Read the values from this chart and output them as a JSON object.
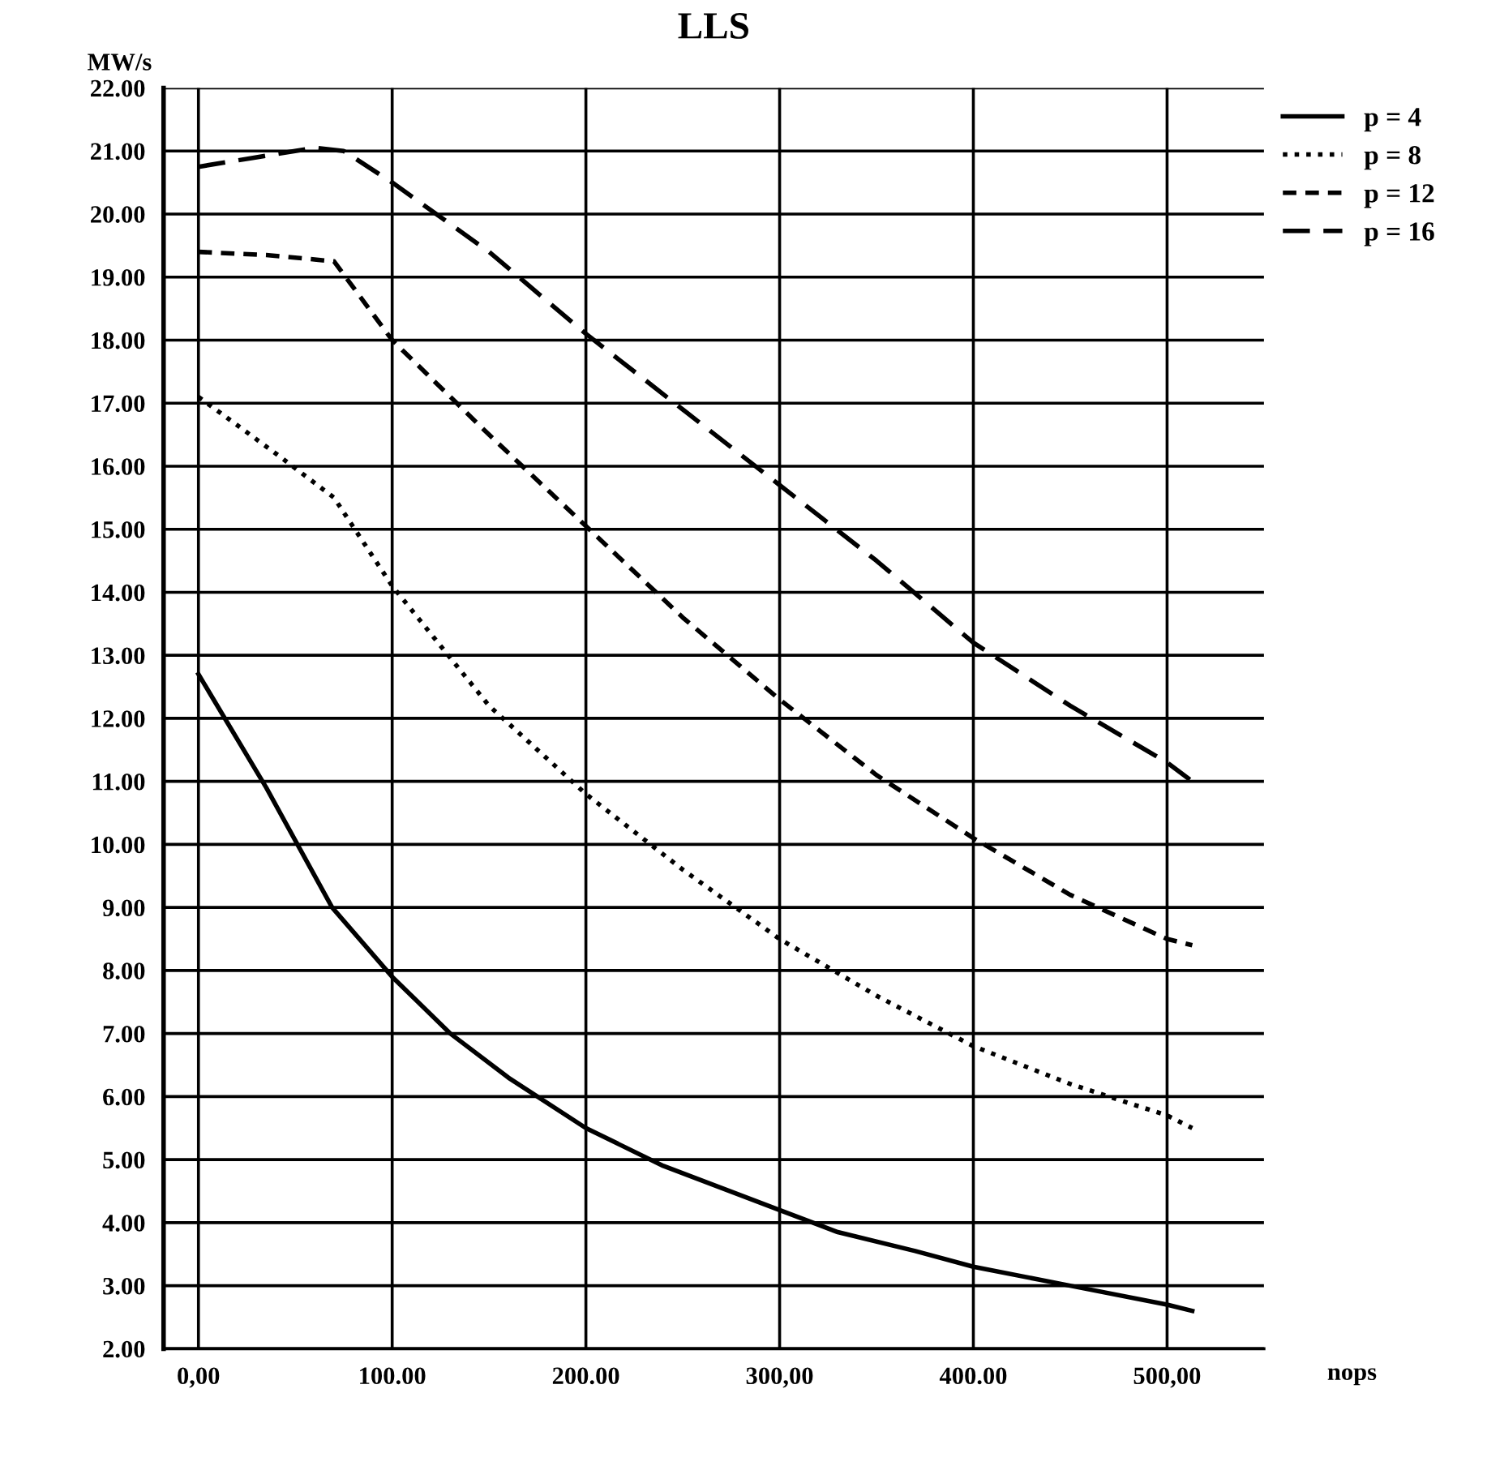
{
  "chart_data": {
    "type": "line",
    "title": "LLS",
    "xlabel": "nops",
    "ylabel": "MW/s",
    "xlim": [
      -18,
      550
    ],
    "ylim": [
      2,
      22
    ],
    "xticks": [
      {
        "value": 0,
        "label": "0,00"
      },
      {
        "value": 100,
        "label": "100.00"
      },
      {
        "value": 200,
        "label": "200.00"
      },
      {
        "value": 300,
        "label": "300,00"
      },
      {
        "value": 400,
        "label": "400.00"
      },
      {
        "value": 500,
        "label": "500,00"
      }
    ],
    "yticks": [
      {
        "value": 2,
        "label": "2.00"
      },
      {
        "value": 3,
        "label": "3.00"
      },
      {
        "value": 4,
        "label": "4.00"
      },
      {
        "value": 5,
        "label": "5.00"
      },
      {
        "value": 6,
        "label": "6.00"
      },
      {
        "value": 7,
        "label": "7.00"
      },
      {
        "value": 8,
        "label": "8.00"
      },
      {
        "value": 9,
        "label": "9.00"
      },
      {
        "value": 10,
        "label": "10.00"
      },
      {
        "value": 11,
        "label": "11.00"
      },
      {
        "value": 12,
        "label": "12.00"
      },
      {
        "value": 13,
        "label": "13.00"
      },
      {
        "value": 14,
        "label": "14.00"
      },
      {
        "value": 15,
        "label": "15.00"
      },
      {
        "value": 16,
        "label": "16.00"
      },
      {
        "value": 17,
        "label": "17.00"
      },
      {
        "value": 18,
        "label": "18.00"
      },
      {
        "value": 19,
        "label": "19.00"
      },
      {
        "value": 20,
        "label": "20.00"
      },
      {
        "value": 21,
        "label": "21.00"
      },
      {
        "value": 22,
        "label": "22.00"
      }
    ],
    "grid": true,
    "legend": "top right",
    "marker": "none",
    "series": [
      {
        "name": "p = 4",
        "color": "#000000",
        "line_style": "solid",
        "x": [
          0,
          35,
          69,
          100,
          130,
          160,
          200,
          240,
          270,
          300,
          330,
          370,
          400,
          450,
          500,
          513
        ],
        "values": [
          12.7,
          10.9,
          9.0,
          7.9,
          7.0,
          6.3,
          5.5,
          4.9,
          4.55,
          4.2,
          3.85,
          3.55,
          3.3,
          3.0,
          2.7,
          2.6
        ]
      },
      {
        "name": "p = 8",
        "color": "#000000",
        "line_style": "dotted",
        "x": [
          0,
          40,
          70,
          100,
          150,
          200,
          250,
          300,
          350,
          400,
          450,
          500,
          513
        ],
        "values": [
          17.1,
          16.2,
          15.5,
          14.1,
          12.2,
          10.8,
          9.6,
          8.5,
          7.6,
          6.8,
          6.2,
          5.7,
          5.5
        ]
      },
      {
        "name": "p = 12",
        "color": "#000000",
        "line_style": "dashed",
        "x": [
          0,
          35,
          70,
          100,
          150,
          200,
          250,
          300,
          350,
          400,
          450,
          500,
          513
        ],
        "values": [
          19.4,
          19.35,
          19.25,
          18.0,
          16.5,
          15.05,
          13.6,
          12.3,
          11.1,
          10.1,
          9.2,
          8.5,
          8.4
        ]
      },
      {
        "name": "p = 16",
        "color": "#000000",
        "line_style": "dashed",
        "x": [
          0,
          30,
          60,
          75,
          100,
          150,
          200,
          250,
          300,
          350,
          400,
          450,
          500,
          513
        ],
        "values": [
          20.75,
          20.9,
          21.05,
          21.0,
          20.5,
          19.4,
          18.1,
          16.9,
          15.7,
          14.5,
          13.2,
          12.2,
          11.3,
          11.0
        ]
      }
    ]
  }
}
